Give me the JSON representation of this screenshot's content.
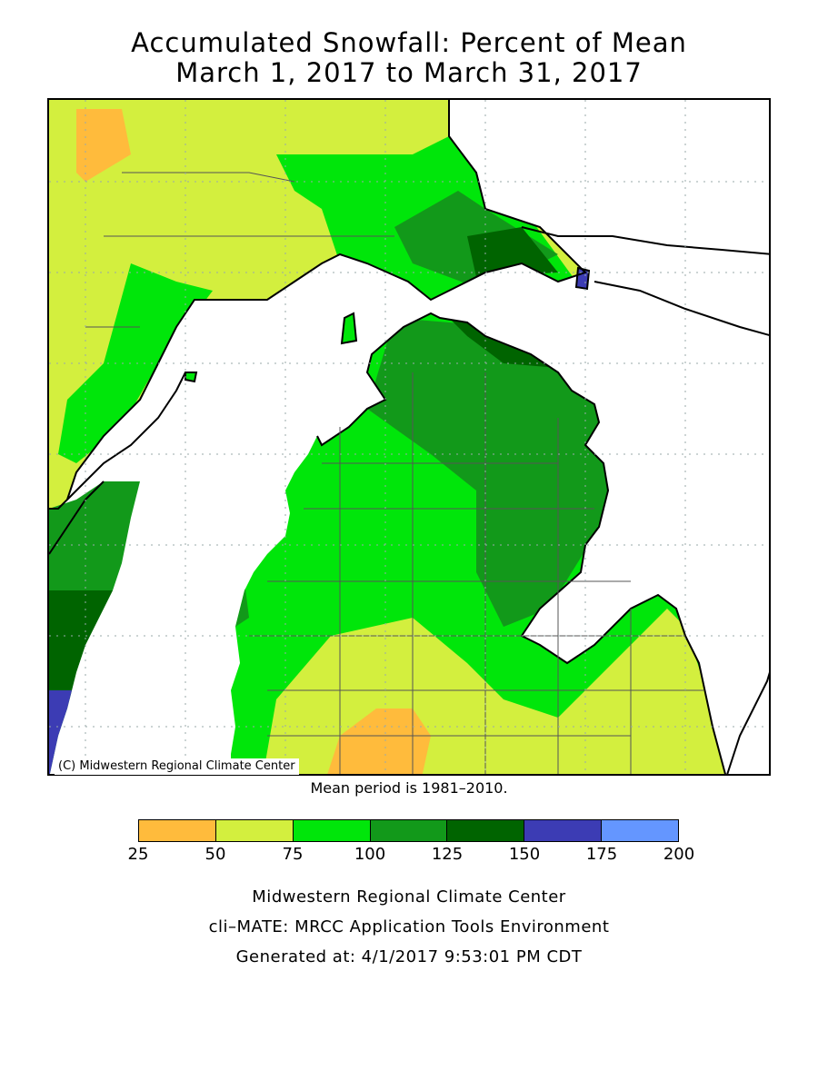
{
  "title": {
    "line1": "Accumulated Snowfall: Percent of Mean",
    "line2": "March 1, 2017 to March 31, 2017"
  },
  "map": {
    "region": "Michigan",
    "water_color": "#ffffff",
    "copyright": "(C) Midwestern Regional Climate Center"
  },
  "mean_note": "Mean period is 1981–2010.",
  "legend": {
    "bins": [
      {
        "from": 25,
        "to": 50,
        "color": "#ffbb3c"
      },
      {
        "from": 50,
        "to": 75,
        "color": "#d3ef3e"
      },
      {
        "from": 75,
        "to": 100,
        "color": "#00e60a"
      },
      {
        "from": 100,
        "to": 125,
        "color": "#12991a"
      },
      {
        "from": 125,
        "to": 150,
        "color": "#006400"
      },
      {
        "from": 150,
        "to": 175,
        "color": "#3c3cb4"
      },
      {
        "from": 175,
        "to": 200,
        "color": "#6496ff"
      }
    ],
    "tick_labels": [
      "25",
      "50",
      "75",
      "100",
      "125",
      "150",
      "175",
      "200"
    ]
  },
  "footer": {
    "line1": "Midwestern Regional Climate Center",
    "line2": "cli–MATE: MRCC Application Tools Environment",
    "line3": "Generated at: 4/1/2017 9:53:01 PM CDT"
  }
}
